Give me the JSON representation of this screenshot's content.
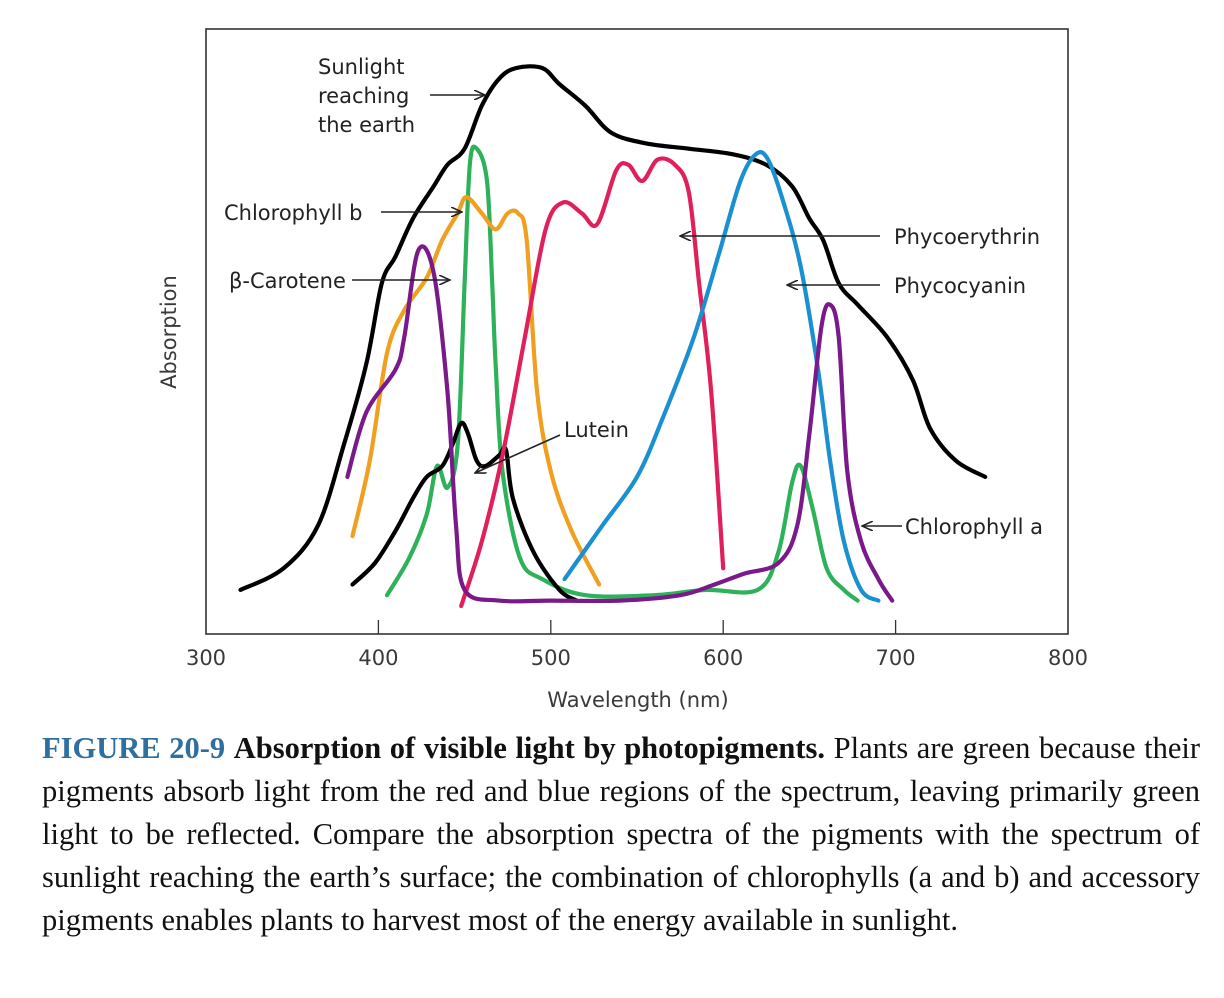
{
  "chart_data": {
    "type": "line",
    "title": "",
    "xlabel": "Wavelength (nm)",
    "ylabel": "Absorption",
    "xlim": [
      300,
      800
    ],
    "ylim": [
      0,
      1
    ],
    "x_ticks": [
      300,
      400,
      500,
      600,
      700,
      800
    ],
    "grid": false,
    "legend": "none (direct labels with arrows)",
    "series": [
      {
        "name": "Sunlight reaching the earth",
        "color": "#000000",
        "points": [
          [
            320,
            0.03
          ],
          [
            345,
            0.07
          ],
          [
            365,
            0.15
          ],
          [
            380,
            0.3
          ],
          [
            393,
            0.45
          ],
          [
            402,
            0.6
          ],
          [
            410,
            0.65
          ],
          [
            420,
            0.72
          ],
          [
            432,
            0.78
          ],
          [
            440,
            0.82
          ],
          [
            450,
            0.85
          ],
          [
            460,
            0.93
          ],
          [
            470,
            0.98
          ],
          [
            480,
            1.0
          ],
          [
            495,
            1.0
          ],
          [
            505,
            0.97
          ],
          [
            520,
            0.93
          ],
          [
            535,
            0.88
          ],
          [
            555,
            0.86
          ],
          [
            580,
            0.85
          ],
          [
            605,
            0.84
          ],
          [
            625,
            0.82
          ],
          [
            640,
            0.78
          ],
          [
            650,
            0.72
          ],
          [
            658,
            0.68
          ],
          [
            667,
            0.6
          ],
          [
            678,
            0.56
          ],
          [
            695,
            0.5
          ],
          [
            710,
            0.42
          ],
          [
            720,
            0.33
          ],
          [
            735,
            0.27
          ],
          [
            752,
            0.24
          ]
        ]
      },
      {
        "name": "Chlorophyll b",
        "color": "#2db25a",
        "points": [
          [
            405,
            0.02
          ],
          [
            418,
            0.09
          ],
          [
            428,
            0.17
          ],
          [
            434,
            0.26
          ],
          [
            440,
            0.22
          ],
          [
            446,
            0.3
          ],
          [
            450,
            0.6
          ],
          [
            453,
            0.82
          ],
          [
            457,
            0.85
          ],
          [
            463,
            0.79
          ],
          [
            466,
            0.6
          ],
          [
            468,
            0.45
          ],
          [
            472,
            0.25
          ],
          [
            482,
            0.09
          ],
          [
            495,
            0.05
          ],
          [
            520,
            0.02
          ],
          [
            560,
            0.02
          ],
          [
            590,
            0.03
          ],
          [
            620,
            0.03
          ],
          [
            632,
            0.1
          ],
          [
            640,
            0.23
          ],
          [
            645,
            0.26
          ],
          [
            652,
            0.18
          ],
          [
            660,
            0.07
          ],
          [
            670,
            0.03
          ],
          [
            678,
            0.01
          ]
        ]
      },
      {
        "name": "β-Carotene",
        "color": "#f0a020",
        "points": [
          [
            385,
            0.13
          ],
          [
            395,
            0.27
          ],
          [
            405,
            0.47
          ],
          [
            415,
            0.55
          ],
          [
            428,
            0.61
          ],
          [
            437,
            0.68
          ],
          [
            446,
            0.73
          ],
          [
            451,
            0.76
          ],
          [
            460,
            0.73
          ],
          [
            468,
            0.7
          ],
          [
            475,
            0.73
          ],
          [
            481,
            0.73
          ],
          [
            486,
            0.68
          ],
          [
            492,
            0.4
          ],
          [
            500,
            0.25
          ],
          [
            512,
            0.14
          ],
          [
            528,
            0.04
          ]
        ]
      },
      {
        "name": "Lutein",
        "color": "#000000",
        "points": [
          [
            385,
            0.04
          ],
          [
            398,
            0.08
          ],
          [
            410,
            0.14
          ],
          [
            420,
            0.2
          ],
          [
            428,
            0.24
          ],
          [
            437,
            0.26
          ],
          [
            443,
            0.3
          ],
          [
            448,
            0.34
          ],
          [
            452,
            0.32
          ],
          [
            457,
            0.27
          ],
          [
            462,
            0.26
          ],
          [
            470,
            0.28
          ],
          [
            474,
            0.29
          ],
          [
            478,
            0.2
          ],
          [
            490,
            0.1
          ],
          [
            505,
            0.03
          ],
          [
            515,
            0.01
          ]
        ]
      },
      {
        "name": "Phycoerythrin",
        "color": "#e0205a",
        "points": [
          [
            448,
            0.0
          ],
          [
            460,
            0.12
          ],
          [
            472,
            0.28
          ],
          [
            485,
            0.5
          ],
          [
            497,
            0.7
          ],
          [
            507,
            0.75
          ],
          [
            518,
            0.73
          ],
          [
            527,
            0.71
          ],
          [
            538,
            0.81
          ],
          [
            545,
            0.82
          ],
          [
            553,
            0.79
          ],
          [
            562,
            0.83
          ],
          [
            572,
            0.82
          ],
          [
            580,
            0.77
          ],
          [
            586,
            0.6
          ],
          [
            593,
            0.4
          ],
          [
            600,
            0.07
          ]
        ]
      },
      {
        "name": "Phycocyanin",
        "color": "#1a90d0",
        "points": [
          [
            508,
            0.05
          ],
          [
            530,
            0.15
          ],
          [
            550,
            0.24
          ],
          [
            565,
            0.35
          ],
          [
            583,
            0.5
          ],
          [
            598,
            0.66
          ],
          [
            610,
            0.79
          ],
          [
            619,
            0.84
          ],
          [
            626,
            0.83
          ],
          [
            635,
            0.75
          ],
          [
            645,
            0.63
          ],
          [
            655,
            0.44
          ],
          [
            662,
            0.27
          ],
          [
            670,
            0.12
          ],
          [
            680,
            0.03
          ],
          [
            690,
            0.01
          ]
        ]
      },
      {
        "name": "Chlorophyll a",
        "color": "#7a1a8a",
        "points": [
          [
            382,
            0.24
          ],
          [
            393,
            0.36
          ],
          [
            410,
            0.44
          ],
          [
            415,
            0.5
          ],
          [
            423,
            0.66
          ],
          [
            432,
            0.62
          ],
          [
            440,
            0.4
          ],
          [
            445,
            0.15
          ],
          [
            450,
            0.03
          ],
          [
            470,
            0.01
          ],
          [
            500,
            0.01
          ],
          [
            540,
            0.01
          ],
          [
            575,
            0.02
          ],
          [
            595,
            0.04
          ],
          [
            612,
            0.06
          ],
          [
            632,
            0.08
          ],
          [
            643,
            0.15
          ],
          [
            650,
            0.32
          ],
          [
            657,
            0.52
          ],
          [
            662,
            0.56
          ],
          [
            667,
            0.5
          ],
          [
            672,
            0.25
          ],
          [
            680,
            0.12
          ],
          [
            690,
            0.05
          ],
          [
            698,
            0.01
          ]
        ]
      }
    ]
  },
  "labels": {
    "sunlight": [
      "Sunlight",
      "reaching",
      "the earth"
    ],
    "chlorophyll_b": "Chlorophyll b",
    "carotene": "β-Carotene",
    "lutein": "Lutein",
    "phycoerythrin": "Phycoerythrin",
    "phycocyanin": "Phycocyanin",
    "chlorophyll_a": "Chlorophyll a"
  },
  "caption": {
    "figure_number": "FIGURE 20-9",
    "title": "Absorption of visible light by photopigments.",
    "body": "Plants are green because their pigments absorb light from the red and blue regions of the spectrum, leaving primarily green light to be reflected. Compare the absorption spectra of the pigments with the spectrum of sunlight reaching the earth’s surface; the combination of chlorophylls (a and b) and accessory pigments enables plants to harvest most of the energy available in sunlight."
  }
}
